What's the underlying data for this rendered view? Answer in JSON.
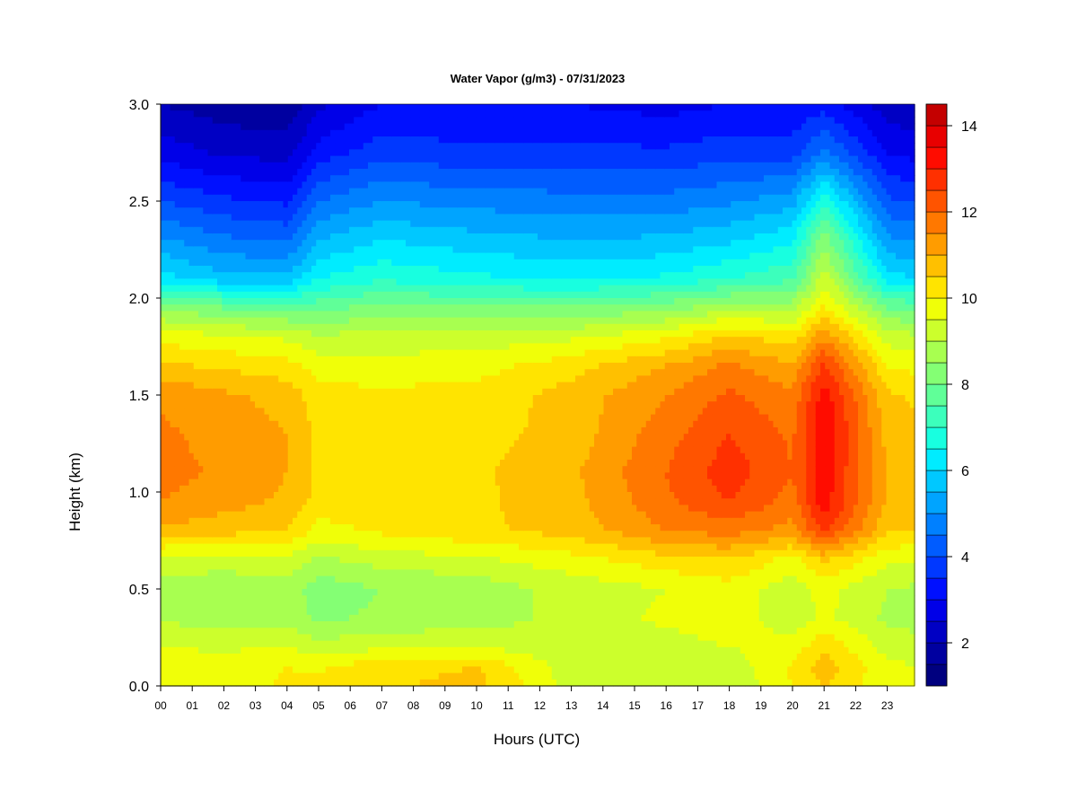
{
  "chart_data": {
    "type": "heatmap",
    "title": "Water Vapor (g/m3) - 07/31/2023",
    "xlabel": "Hours (UTC)",
    "ylabel": "Height (km)",
    "x_tick_labels": [
      "00",
      "01",
      "02",
      "03",
      "04",
      "05",
      "06",
      "07",
      "08",
      "09",
      "10",
      "11",
      "12",
      "13",
      "14",
      "15",
      "16",
      "17",
      "18",
      "19",
      "20",
      "21",
      "22",
      "23"
    ],
    "x_range": [
      0,
      24
    ],
    "y_tick_labels": [
      "0.0",
      "0.5",
      "1.0",
      "1.5",
      "2.0",
      "2.5",
      "3.0"
    ],
    "y_range": [
      0,
      3
    ],
    "colorbar": {
      "range": [
        1,
        14.5
      ],
      "levels": [
        1,
        1.5,
        2,
        2.5,
        3,
        3.5,
        4,
        4.5,
        5,
        5.5,
        6,
        6.5,
        7,
        7.5,
        8,
        8.5,
        9,
        9.5,
        10,
        10.5,
        11,
        11.5,
        12,
        12.5,
        13,
        13.5,
        14,
        14.5
      ],
      "tick_labels": [
        "2",
        "4",
        "6",
        "8",
        "10",
        "12",
        "14"
      ],
      "colors": [
        "#00007f",
        "#0000a0",
        "#0000c4",
        "#0000e8",
        "#0010ff",
        "#0038ff",
        "#005cff",
        "#0080ff",
        "#00a4ff",
        "#00c8ff",
        "#00ecff",
        "#18ffe0",
        "#3cffbc",
        "#60ff98",
        "#84ff74",
        "#a8ff50",
        "#ccff2c",
        "#f0ff08",
        "#ffe400",
        "#ffc000",
        "#ff9c00",
        "#ff7800",
        "#ff5400",
        "#ff3000",
        "#ff0c00",
        "#e80000",
        "#c40000",
        "#9f0000"
      ]
    },
    "grid": false,
    "legend": "colorbar-right",
    "profile_heights_km": [
      0.0,
      0.1,
      0.2,
      0.35,
      0.5,
      0.65,
      0.8,
      0.95,
      1.1,
      1.3,
      1.5,
      1.65,
      1.8,
      1.95,
      2.1,
      2.3,
      2.5,
      2.75,
      3.0
    ],
    "profiles": [
      {
        "hour": 0,
        "values": [
          9.7,
          9.8,
          9.5,
          8.9,
          8.8,
          9.3,
          10.9,
          11.5,
          11.7,
          11.6,
          11.4,
          10.6,
          9.8,
          8.4,
          6.2,
          5.1,
          4.0,
          2.8,
          2.0
        ]
      },
      {
        "hour": 2,
        "values": [
          9.6,
          9.8,
          9.4,
          8.8,
          8.7,
          9.2,
          10.7,
          11.2,
          11.4,
          11.3,
          11.1,
          10.4,
          9.6,
          8.0,
          5.7,
          4.6,
          3.6,
          2.4,
          1.7
        ]
      },
      {
        "hour": 4,
        "values": [
          10.1,
          10.0,
          9.5,
          8.8,
          8.8,
          9.3,
          10.5,
          10.9,
          11.0,
          11.0,
          10.8,
          10.2,
          9.4,
          7.8,
          5.6,
          4.4,
          3.4,
          2.3,
          1.6
        ]
      },
      {
        "hour": 5,
        "values": [
          10.2,
          9.9,
          9.2,
          8.4,
          8.2,
          8.9,
          9.8,
          10.3,
          10.4,
          10.4,
          10.2,
          9.8,
          9.1,
          7.8,
          6.5,
          5.5,
          4.5,
          3.2,
          2.4
        ]
      },
      {
        "hour": 7,
        "values": [
          10.4,
          10.3,
          9.4,
          8.6,
          8.5,
          9.2,
          10.1,
          10.3,
          10.3,
          10.2,
          10.1,
          9.7,
          9.2,
          8.2,
          6.9,
          6.0,
          5.0,
          3.8,
          3.0
        ]
      },
      {
        "hour": 10,
        "values": [
          10.7,
          10.5,
          9.5,
          8.7,
          8.7,
          9.4,
          10.4,
          10.4,
          10.4,
          10.3,
          10.2,
          9.8,
          9.2,
          8.0,
          6.6,
          5.7,
          4.8,
          3.6,
          3.0
        ]
      },
      {
        "hour": 13,
        "values": [
          9.3,
          9.2,
          9.1,
          9.2,
          9.2,
          9.8,
          10.7,
          10.8,
          10.9,
          10.7,
          10.7,
          10.3,
          9.4,
          8.0,
          6.4,
          5.5,
          4.7,
          3.6,
          3.0
        ]
      },
      {
        "hour": 16,
        "values": [
          9.0,
          9.1,
          9.3,
          9.6,
          9.5,
          10.3,
          11.5,
          11.9,
          12.0,
          11.8,
          11.5,
          11.0,
          9.9,
          8.3,
          6.6,
          5.6,
          4.7,
          3.6,
          2.8
        ]
      },
      {
        "hour": 18,
        "values": [
          9.0,
          9.2,
          9.5,
          9.8,
          9.8,
          10.5,
          11.7,
          12.5,
          12.8,
          12.5,
          12.1,
          11.6,
          10.6,
          8.8,
          7.0,
          5.9,
          4.9,
          3.8,
          3.0
        ]
      },
      {
        "hour": 20,
        "values": [
          10.0,
          10.1,
          9.7,
          9.2,
          9.2,
          9.8,
          11.3,
          11.8,
          12.0,
          11.9,
          11.6,
          11.1,
          10.2,
          8.8,
          7.4,
          6.4,
          5.3,
          3.8,
          3.0
        ]
      },
      {
        "hour": 21,
        "values": [
          10.5,
          10.8,
          10.4,
          9.6,
          9.7,
          10.6,
          12.6,
          13.3,
          13.3,
          13.5,
          13.3,
          12.6,
          11.4,
          10.1,
          9.3,
          8.3,
          6.9,
          4.6,
          3.3
        ]
      },
      {
        "hour": 23,
        "values": [
          9.6,
          9.6,
          9.3,
          8.9,
          9.0,
          9.6,
          10.6,
          10.9,
          11.0,
          10.8,
          10.6,
          10.0,
          9.3,
          8.0,
          6.2,
          5.1,
          4.1,
          3.0,
          2.2
        ]
      },
      {
        "hour": 24,
        "values": [
          9.5,
          9.5,
          9.2,
          8.8,
          8.9,
          9.5,
          10.5,
          10.8,
          10.8,
          10.6,
          10.4,
          9.8,
          9.1,
          7.8,
          6.0,
          4.9,
          3.9,
          2.8,
          2.0
        ]
      }
    ]
  }
}
